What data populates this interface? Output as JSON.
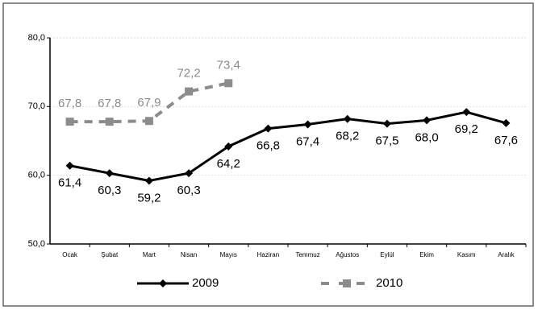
{
  "chart_data": {
    "type": "line",
    "categories": [
      "Ocak",
      "Şubat",
      "Mart",
      "Nisan",
      "Mayıs",
      "Haziran",
      "Temmuz",
      "Ağustos",
      "Eylül",
      "Ekim",
      "Kasım",
      "Aralık"
    ],
    "series": [
      {
        "name": "2009",
        "color": "#000000",
        "values": [
          61.4,
          60.3,
          59.2,
          60.3,
          64.2,
          66.8,
          67.4,
          68.2,
          67.5,
          68.0,
          69.2,
          67.6
        ],
        "value_labels": [
          "61,4",
          "60,3",
          "59,2",
          "60,3",
          "64,2",
          "66,8",
          "67,4",
          "68,2",
          "67,5",
          "68,0",
          "69,2",
          "67,6"
        ]
      },
      {
        "name": "2010",
        "color": "#8c8c8c",
        "values": [
          67.8,
          67.8,
          67.9,
          72.2,
          73.4,
          null,
          null,
          null,
          null,
          null,
          null,
          null
        ],
        "value_labels": [
          "67,8",
          "67,8",
          "67,9",
          "72,2",
          "73,4",
          null,
          null,
          null,
          null,
          null,
          null,
          null
        ]
      }
    ],
    "ylim": [
      50,
      80
    ],
    "yticks": [
      {
        "value": 50,
        "label": "50,0"
      },
      {
        "value": 60,
        "label": "60,0"
      },
      {
        "value": 70,
        "label": "70,0"
      },
      {
        "value": 80,
        "label": "80,0"
      }
    ],
    "grid": true
  }
}
